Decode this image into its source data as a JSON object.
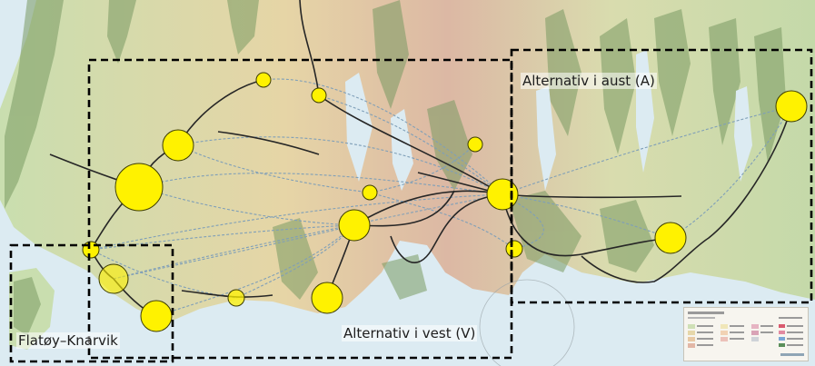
{
  "areas": {
    "east_label": "Alternativ i aust (A)",
    "west_label": "Alternativ i vest (V)",
    "south_label": "Flatøy–Knarvik"
  },
  "colors": {
    "sea": "#dcebf2",
    "land_low": "#cfe0b6",
    "land_mid": "#e7d9ab",
    "land_high": "#e2b7a6",
    "forest": "#6f8f5a",
    "node_fill": "#fff200",
    "node_stroke": "#4a4a00",
    "route_solid": "#222222",
    "route_dashed": "#7a9bb5",
    "frame": "#000000"
  },
  "legend": {
    "icon": "map-legend-icon"
  }
}
